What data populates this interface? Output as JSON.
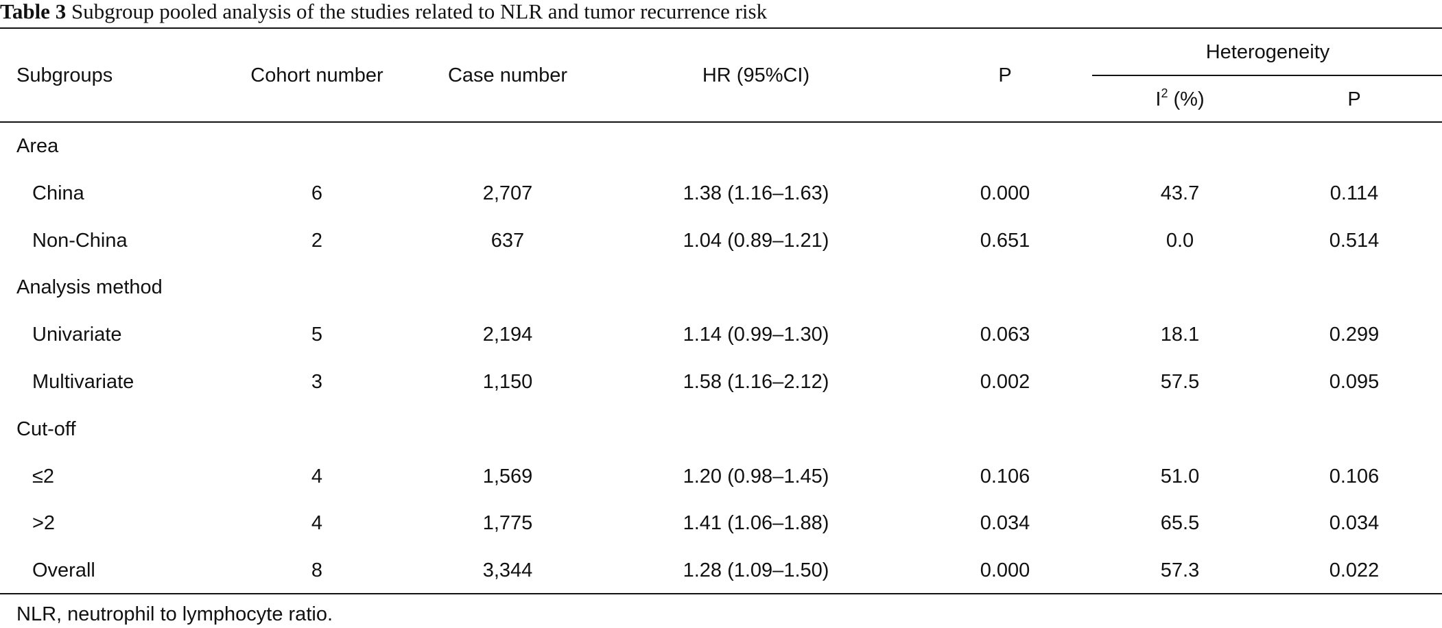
{
  "caption": {
    "label": "Table 3",
    "text": "Subgroup pooled analysis of the studies related to NLR and tumor recurrence risk"
  },
  "headers": {
    "subgroups": "Subgroups",
    "cohort_number": "Cohort number",
    "case_number": "Case number",
    "hr": "HR (95%CI)",
    "p": "P",
    "heterogeneity": "Heterogeneity",
    "i2_base": "I",
    "i2_sup": "2",
    "i2_unit": " (%)",
    "het_p": "P"
  },
  "rows": [
    {
      "subgroup": "Area",
      "cohort": "",
      "case": "",
      "hr": "",
      "p": "",
      "i2": "",
      "het_p": ""
    },
    {
      "subgroup": "China",
      "cohort": "6",
      "case": "2,707",
      "hr": "1.38 (1.16–1.63)",
      "p": "0.000",
      "i2": "43.7",
      "het_p": "0.114"
    },
    {
      "subgroup": "Non-China",
      "cohort": "2",
      "case": "637",
      "hr": "1.04 (0.89–1.21)",
      "p": "0.651",
      "i2": "0.0",
      "het_p": "0.514"
    },
    {
      "subgroup": "Analysis method",
      "cohort": "",
      "case": "",
      "hr": "",
      "p": "",
      "i2": "",
      "het_p": ""
    },
    {
      "subgroup": "Univariate",
      "cohort": "5",
      "case": "2,194",
      "hr": "1.14 (0.99–1.30)",
      "p": "0.063",
      "i2": "18.1",
      "het_p": "0.299"
    },
    {
      "subgroup": "Multivariate",
      "cohort": "3",
      "case": "1,150",
      "hr": "1.58 (1.16–2.12)",
      "p": "0.002",
      "i2": "57.5",
      "het_p": "0.095"
    },
    {
      "subgroup": "Cut-off",
      "cohort": "",
      "case": "",
      "hr": "",
      "p": "",
      "i2": "",
      "het_p": ""
    },
    {
      "subgroup": "≤2",
      "cohort": "4",
      "case": "1,569",
      "hr": "1.20 (0.98–1.45)",
      "p": "0.106",
      "i2": "51.0",
      "het_p": "0.106"
    },
    {
      "subgroup": ">2",
      "cohort": "4",
      "case": "1,775",
      "hr": "1.41 (1.06–1.88)",
      "p": "0.034",
      "i2": "65.5",
      "het_p": "0.034"
    },
    {
      "subgroup": "Overall",
      "cohort": "8",
      "case": "3,344",
      "hr": "1.28 (1.09–1.50)",
      "p": "0.000",
      "i2": "57.3",
      "het_p": "0.022"
    }
  ],
  "footnote": "NLR, neutrophil to lymphocyte ratio."
}
